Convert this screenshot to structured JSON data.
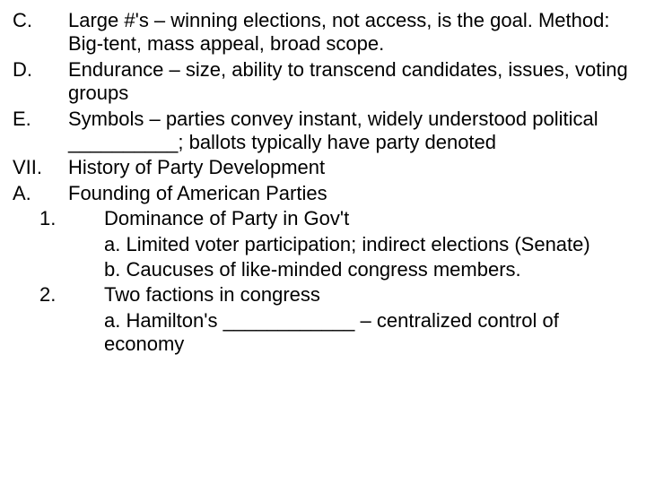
{
  "items": [
    {
      "label": "C.",
      "text": "Large #'s – winning elections, not access, is the goal. Method: Big-tent, mass appeal, broad scope.",
      "level": 0
    },
    {
      "label": "D.",
      "text": "Endurance – size, ability to transcend candidates, issues, voting groups",
      "level": 0
    },
    {
      "label": "E.",
      "text": "Symbols – parties convey instant, widely understood political __________; ballots typically have party denoted",
      "level": 0
    },
    {
      "label": "VII.",
      "text": "History of Party Development",
      "level": 0
    },
    {
      "label": "A.",
      "text": "Founding of American Parties",
      "level": 0
    },
    {
      "label": "1.",
      "text": "Dominance of Party in Gov't",
      "level": 1
    },
    {
      "label": "",
      "text": "a.  Limited voter participation; indirect elections (Senate)",
      "level": 2
    },
    {
      "label": "",
      "text": "b.  Caucuses of like-minded congress members.",
      "level": 2
    },
    {
      "label": "2.",
      "text": "Two factions in congress",
      "level": 1
    },
    {
      "label": "",
      "text": "a.  Hamilton's ____________ – centralized control of economy",
      "level": 2
    }
  ]
}
